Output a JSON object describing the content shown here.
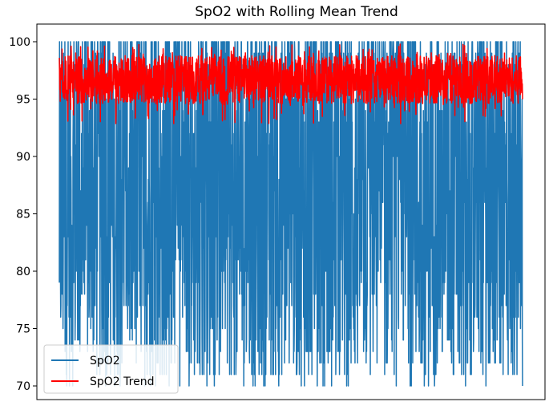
{
  "chart_data": {
    "type": "line",
    "title": "SpO2 with Rolling Mean Trend",
    "xlabel": "",
    "ylabel": "",
    "ylim": [
      69.5,
      100.9
    ],
    "yticks": [
      70,
      75,
      80,
      85,
      90,
      95,
      100
    ],
    "ytick_labels": [
      "70",
      "75",
      "80",
      "85",
      "90",
      "95",
      "100"
    ],
    "xticks_visible": false,
    "grid": false,
    "legend_position": "lower-left",
    "legend": [
      "SpO2",
      "SpO2 Trend"
    ],
    "series": [
      {
        "name": "SpO2",
        "color": "#1f77b4",
        "range": [
          70,
          100
        ],
        "points": 2000,
        "mean": 87.5
      },
      {
        "name": "SpO2 Trend",
        "color": "#ff0000",
        "range": [
          92.7,
          99.8
        ],
        "points": 2000,
        "mean": 96.7
      }
    ]
  }
}
